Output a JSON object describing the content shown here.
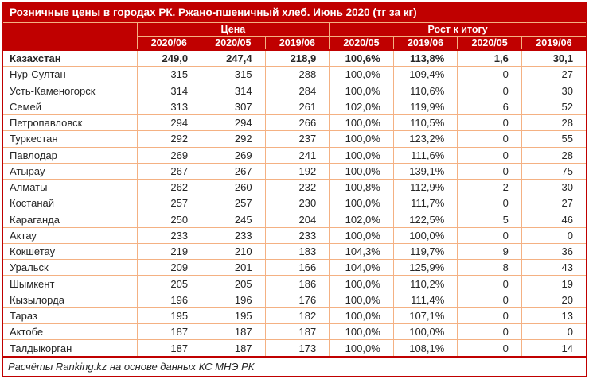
{
  "colors": {
    "header_red": "#c00000",
    "grid_orange": "#f4b183",
    "text_dark": "#262626",
    "header_text": "#ffffff"
  },
  "chart_data": {
    "type": "table",
    "title": "Розничные цены в городах РК. Ржано-пшеничный хлеб. Июнь 2020 (тг за кг)",
    "column_groups": [
      {
        "label": "Цена",
        "span": 3
      },
      {
        "label": "Рост к итогу",
        "span": 4
      }
    ],
    "columns": [
      "2020/06",
      "2020/05",
      "2019/06",
      "2020/05",
      "2019/06",
      "2020/05",
      "2019/06"
    ],
    "rows": [
      {
        "name": "Казахстан",
        "bold": true,
        "values": [
          "249,0",
          "247,4",
          "218,9",
          "100,6%",
          "113,8%",
          "1,6",
          "30,1"
        ]
      },
      {
        "name": "Нур-Султан",
        "bold": false,
        "values": [
          "315",
          "315",
          "288",
          "100,0%",
          "109,4%",
          "0",
          "27"
        ]
      },
      {
        "name": "Усть-Каменогорск",
        "bold": false,
        "values": [
          "314",
          "314",
          "284",
          "100,0%",
          "110,6%",
          "0",
          "30"
        ]
      },
      {
        "name": "Семей",
        "bold": false,
        "values": [
          "313",
          "307",
          "261",
          "102,0%",
          "119,9%",
          "6",
          "52"
        ]
      },
      {
        "name": "Петропавловск",
        "bold": false,
        "values": [
          "294",
          "294",
          "266",
          "100,0%",
          "110,5%",
          "0",
          "28"
        ]
      },
      {
        "name": "Туркестан",
        "bold": false,
        "values": [
          "292",
          "292",
          "237",
          "100,0%",
          "123,2%",
          "0",
          "55"
        ]
      },
      {
        "name": "Павлодар",
        "bold": false,
        "values": [
          "269",
          "269",
          "241",
          "100,0%",
          "111,6%",
          "0",
          "28"
        ]
      },
      {
        "name": "Атырау",
        "bold": false,
        "values": [
          "267",
          "267",
          "192",
          "100,0%",
          "139,1%",
          "0",
          "75"
        ]
      },
      {
        "name": "Алматы",
        "bold": false,
        "values": [
          "262",
          "260",
          "232",
          "100,8%",
          "112,9%",
          "2",
          "30"
        ]
      },
      {
        "name": "Костанай",
        "bold": false,
        "values": [
          "257",
          "257",
          "230",
          "100,0%",
          "111,7%",
          "0",
          "27"
        ]
      },
      {
        "name": "Караганда",
        "bold": false,
        "values": [
          "250",
          "245",
          "204",
          "102,0%",
          "122,5%",
          "5",
          "46"
        ]
      },
      {
        "name": "Актау",
        "bold": false,
        "values": [
          "233",
          "233",
          "233",
          "100,0%",
          "100,0%",
          "0",
          "0"
        ]
      },
      {
        "name": "Кокшетау",
        "bold": false,
        "values": [
          "219",
          "210",
          "183",
          "104,3%",
          "119,7%",
          "9",
          "36"
        ]
      },
      {
        "name": "Уральск",
        "bold": false,
        "values": [
          "209",
          "201",
          "166",
          "104,0%",
          "125,9%",
          "8",
          "43"
        ]
      },
      {
        "name": "Шымкент",
        "bold": false,
        "values": [
          "205",
          "205",
          "186",
          "100,0%",
          "110,2%",
          "0",
          "19"
        ]
      },
      {
        "name": "Кызылорда",
        "bold": false,
        "values": [
          "196",
          "196",
          "176",
          "100,0%",
          "111,4%",
          "0",
          "20"
        ]
      },
      {
        "name": "Тараз",
        "bold": false,
        "values": [
          "195",
          "195",
          "182",
          "100,0%",
          "107,1%",
          "0",
          "13"
        ]
      },
      {
        "name": "Актобе",
        "bold": false,
        "values": [
          "187",
          "187",
          "187",
          "100,0%",
          "100,0%",
          "0",
          "0"
        ]
      },
      {
        "name": "Талдыкорган",
        "bold": false,
        "values": [
          "187",
          "187",
          "173",
          "100,0%",
          "108,1%",
          "0",
          "14"
        ]
      }
    ],
    "footer": "Расчёты Ranking.kz на основе данных КС МНЭ РК"
  }
}
